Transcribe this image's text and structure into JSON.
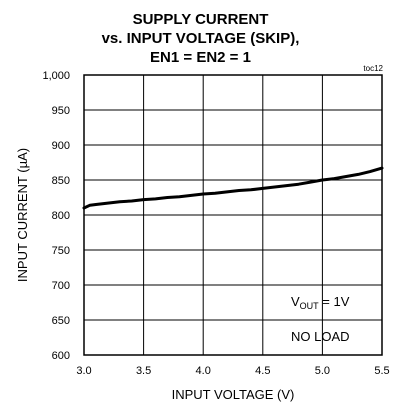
{
  "chart_data": {
    "type": "line",
    "title": [
      "SUPPLY CURRENT",
      "vs. INPUT VOLTAGE (SKIP),",
      "EN1 = EN2 = 1"
    ],
    "chart_code": "toc12",
    "xlabel": "INPUT VOLTAGE (V)",
    "ylabel": "INPUT CURRENT (µA)",
    "xlim": [
      3.0,
      5.5
    ],
    "ylim": [
      600,
      1000
    ],
    "xticks": [
      "3.0",
      "3.5",
      "4.0",
      "4.5",
      "5.0",
      "5.5"
    ],
    "yticks": [
      "600",
      "650",
      "700",
      "750",
      "800",
      "850",
      "900",
      "950",
      "1,000"
    ],
    "grid": true,
    "annotations": [
      {
        "base": "V",
        "sub": "OUT",
        "rest": " = 1V"
      },
      {
        "text": "NO LOAD"
      }
    ],
    "series": [
      {
        "x": [
          3.0,
          3.05,
          3.1,
          3.2,
          3.3,
          3.4,
          3.5,
          3.6,
          3.7,
          3.8,
          3.9,
          4.0,
          4.1,
          4.2,
          4.3,
          4.4,
          4.5,
          4.6,
          4.7,
          4.8,
          4.9,
          5.0,
          5.1,
          5.2,
          5.3,
          5.4,
          5.5
        ],
        "y": [
          810,
          814,
          815,
          817,
          819,
          820,
          822,
          823,
          825,
          826,
          828,
          830,
          831,
          833,
          835,
          836,
          838,
          840,
          842,
          844,
          847,
          850,
          852,
          855,
          858,
          862,
          867
        ]
      }
    ]
  }
}
